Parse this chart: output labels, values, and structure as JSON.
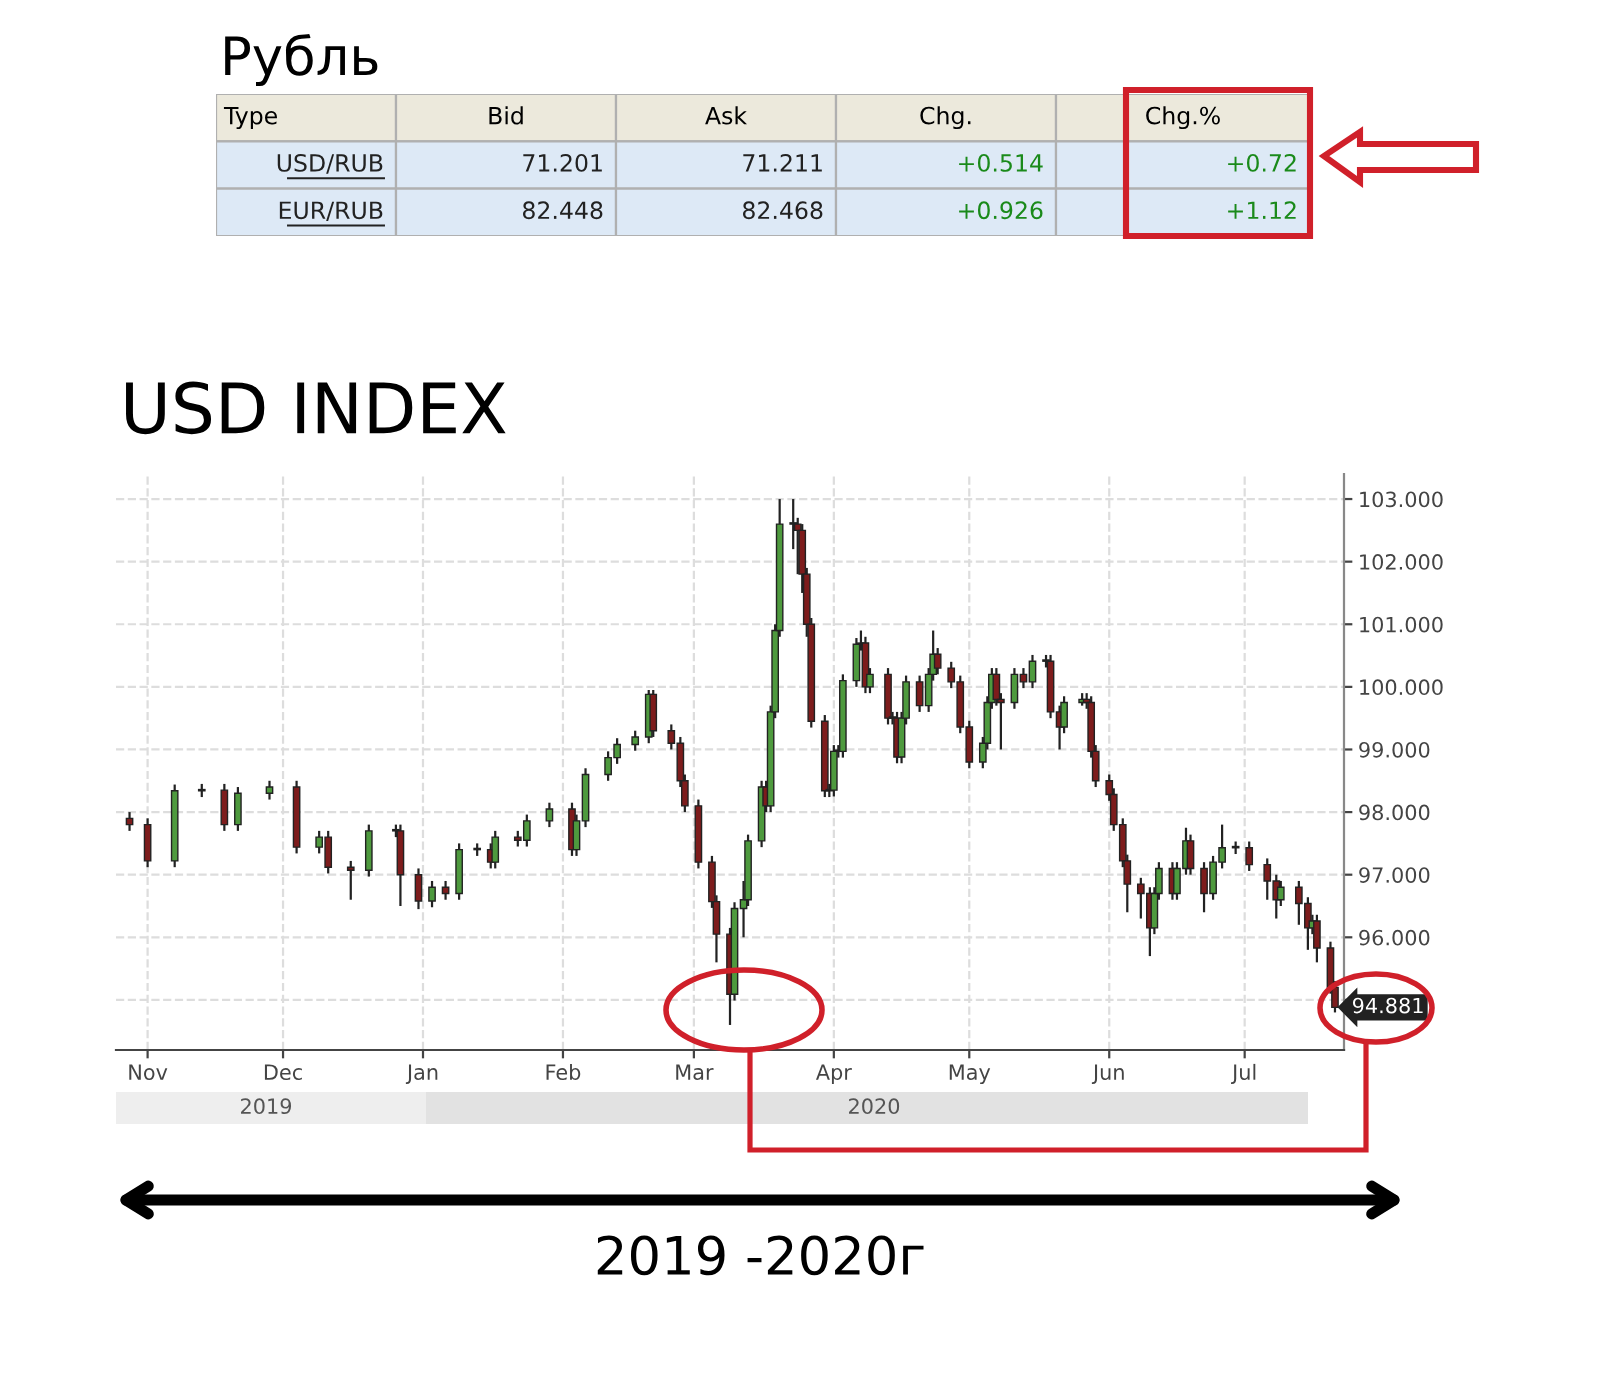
{
  "chart_data": [
    {
      "type": "other",
      "title": "Рубль",
      "categories": [
        "Type",
        "Bid",
        "Ask",
        "Chg.",
        "Chg.%"
      ],
      "y_categories": [
        "USD/RUB",
        "EUR/RUB"
      ],
      "cell_labels": [
        [
          "71.201",
          "71.211",
          "+0.514",
          "+0.72"
        ],
        [
          "82.448",
          "82.468",
          "+0.926",
          "+1.12"
        ]
      ]
    },
    {
      "type": "candlestick",
      "title": "USD INDEX",
      "x": [
        "2019-10-28",
        "2019-11-01",
        "2019-11-07",
        "2019-11-13",
        "2019-11-18",
        "2019-11-21",
        "2019-11-28",
        "2019-12-04",
        "2019-12-09",
        "2019-12-11",
        "2019-12-16",
        "2019-12-20",
        "2019-12-26",
        "2019-12-27",
        "2019-12-31",
        "2020-01-03",
        "2020-01-06",
        "2020-01-09",
        "2020-01-13",
        "2020-01-16",
        "2020-01-17",
        "2020-01-22",
        "2020-01-24",
        "2020-01-29",
        "2020-02-03",
        "2020-02-04",
        "2020-02-06",
        "2020-02-11",
        "2020-02-13",
        "2020-02-17",
        "2020-02-20",
        "2020-02-21",
        "2020-02-25",
        "2020-02-27",
        "2020-02-28",
        "2020-03-02",
        "2020-03-05",
        "2020-03-06",
        "2020-03-09",
        "2020-03-10",
        "2020-03-12",
        "2020-03-13",
        "2020-03-16",
        "2020-03-17",
        "2020-03-18",
        "2020-03-19",
        "2020-03-20",
        "2020-03-23",
        "2020-03-24",
        "2020-03-25",
        "2020-03-26",
        "2020-03-27",
        "2020-03-30",
        "2020-03-31",
        "2020-04-01",
        "2020-04-02",
        "2020-04-03",
        "2020-04-06",
        "2020-04-07",
        "2020-04-08",
        "2020-04-09",
        "2020-04-13",
        "2020-04-14",
        "2020-04-15",
        "2020-04-16",
        "2020-04-17",
        "2020-04-20",
        "2020-04-22",
        "2020-04-23",
        "2020-04-24",
        "2020-04-27",
        "2020-04-29",
        "2020-05-01",
        "2020-05-04",
        "2020-05-05",
        "2020-05-06",
        "2020-05-07",
        "2020-05-08",
        "2020-05-11",
        "2020-05-13",
        "2020-05-15",
        "2020-05-18",
        "2020-05-19",
        "2020-05-21",
        "2020-05-22",
        "2020-05-26",
        "2020-05-27",
        "2020-05-28",
        "2020-05-29",
        "2020-06-01",
        "2020-06-02",
        "2020-06-04",
        "2020-06-05",
        "2020-06-08",
        "2020-06-10",
        "2020-06-11",
        "2020-06-12",
        "2020-06-15",
        "2020-06-16",
        "2020-06-18",
        "2020-06-19",
        "2020-06-22",
        "2020-06-24",
        "2020-06-26",
        "2020-06-29",
        "2020-07-02",
        "2020-07-06",
        "2020-07-08",
        "2020-07-09",
        "2020-07-13",
        "2020-07-15",
        "2020-07-16",
        "2020-07-17",
        "2020-07-20",
        "2020-07-21"
      ],
      "ohlc": [
        [
          97.9,
          98.0,
          97.7,
          97.8
        ],
        [
          97.8,
          97.9,
          97.12,
          97.22
        ],
        [
          97.22,
          98.44,
          97.12,
          98.34
        ],
        [
          98.34,
          98.45,
          98.24,
          98.35
        ],
        [
          98.35,
          98.45,
          97.7,
          97.8
        ],
        [
          97.8,
          98.4,
          97.7,
          98.3
        ],
        [
          98.3,
          98.5,
          98.2,
          98.4
        ],
        [
          98.4,
          98.5,
          97.34,
          97.44
        ],
        [
          97.44,
          97.7,
          97.34,
          97.6
        ],
        [
          97.6,
          97.7,
          97.02,
          97.12
        ],
        [
          97.12,
          97.22,
          96.6,
          97.07
        ],
        [
          97.07,
          97.8,
          96.97,
          97.7
        ],
        [
          97.7,
          97.8,
          97.6,
          97.7
        ],
        [
          97.7,
          97.8,
          96.5,
          97.0
        ],
        [
          97.0,
          97.1,
          96.45,
          96.58
        ],
        [
          96.58,
          96.9,
          96.48,
          96.8
        ],
        [
          96.8,
          96.9,
          96.6,
          96.7
        ],
        [
          96.7,
          97.5,
          96.6,
          97.4
        ],
        [
          97.4,
          97.5,
          97.3,
          97.4
        ],
        [
          97.4,
          97.5,
          97.1,
          97.2
        ],
        [
          97.2,
          97.7,
          97.1,
          97.6
        ],
        [
          97.6,
          97.7,
          97.45,
          97.55
        ],
        [
          97.55,
          97.96,
          97.45,
          97.86
        ],
        [
          97.86,
          98.15,
          97.76,
          98.05
        ],
        [
          98.05,
          98.15,
          97.3,
          97.4
        ],
        [
          97.4,
          97.96,
          97.3,
          97.86
        ],
        [
          97.86,
          98.7,
          97.76,
          98.6
        ],
        [
          98.6,
          98.97,
          98.5,
          98.87
        ],
        [
          98.87,
          99.18,
          98.77,
          99.08
        ],
        [
          99.08,
          99.3,
          98.98,
          99.2
        ],
        [
          99.2,
          99.95,
          99.1,
          99.88
        ],
        [
          99.88,
          99.95,
          99.2,
          99.3
        ],
        [
          99.3,
          99.4,
          99.0,
          99.1
        ],
        [
          99.1,
          99.2,
          98.4,
          98.5
        ],
        [
          98.5,
          98.6,
          98.0,
          98.1
        ],
        [
          98.1,
          98.2,
          97.1,
          97.2
        ],
        [
          97.2,
          97.3,
          96.47,
          96.57
        ],
        [
          96.57,
          96.67,
          95.6,
          96.05
        ],
        [
          96.05,
          96.15,
          94.6,
          95.09
        ],
        [
          95.09,
          96.56,
          94.99,
          96.46
        ],
        [
          96.46,
          96.9,
          96.0,
          96.6
        ],
        [
          96.6,
          97.64,
          96.5,
          97.54
        ],
        [
          97.54,
          98.5,
          97.44,
          98.4
        ],
        [
          98.4,
          98.5,
          98.0,
          98.1
        ],
        [
          98.1,
          99.7,
          98.0,
          99.6
        ],
        [
          99.6,
          101.0,
          99.5,
          100.9
        ],
        [
          100.9,
          103.0,
          100.8,
          102.6
        ],
        [
          102.6,
          103.0,
          102.2,
          102.6
        ],
        [
          102.6,
          102.7,
          101.8,
          102.5
        ],
        [
          102.5,
          102.6,
          101.5,
          101.8
        ],
        [
          101.8,
          101.9,
          100.8,
          101.0
        ],
        [
          101.0,
          101.1,
          99.35,
          99.45
        ],
        [
          99.45,
          99.55,
          98.24,
          98.34
        ],
        [
          98.34,
          98.45,
          98.24,
          98.35
        ],
        [
          98.35,
          99.07,
          98.25,
          98.97
        ],
        [
          98.97,
          99.07,
          98.87,
          98.97
        ],
        [
          98.97,
          100.2,
          98.87,
          100.1
        ],
        [
          100.1,
          100.78,
          100.0,
          100.68
        ],
        [
          100.68,
          100.9,
          100.58,
          100.7
        ],
        [
          100.7,
          100.8,
          99.9,
          100.0
        ],
        [
          100.0,
          100.3,
          99.9,
          100.2
        ],
        [
          100.2,
          100.3,
          99.4,
          99.5
        ],
        [
          99.5,
          99.6,
          99.4,
          99.5
        ],
        [
          99.5,
          99.6,
          98.78,
          98.88
        ],
        [
          98.88,
          99.6,
          98.78,
          99.5
        ],
        [
          99.5,
          100.18,
          99.4,
          100.08
        ],
        [
          100.08,
          100.18,
          99.6,
          99.7
        ],
        [
          99.7,
          100.3,
          99.6,
          100.2
        ],
        [
          100.2,
          100.9,
          100.1,
          100.52
        ],
        [
          100.52,
          100.62,
          100.2,
          100.3
        ],
        [
          100.3,
          100.4,
          99.98,
          100.08
        ],
        [
          100.08,
          100.18,
          99.26,
          99.36
        ],
        [
          99.36,
          99.46,
          98.7,
          98.8
        ],
        [
          98.8,
          99.2,
          98.7,
          99.1
        ],
        [
          99.1,
          99.85,
          99.0,
          99.75
        ],
        [
          99.75,
          100.3,
          99.65,
          100.2
        ],
        [
          100.2,
          100.3,
          99.7,
          99.8
        ],
        [
          99.8,
          99.9,
          99.0,
          99.75
        ],
        [
          99.75,
          100.3,
          99.65,
          100.2
        ],
        [
          100.2,
          100.3,
          99.98,
          100.08
        ],
        [
          100.08,
          100.51,
          99.98,
          100.41
        ],
        [
          100.41,
          100.51,
          100.31,
          100.41
        ],
        [
          100.41,
          100.51,
          99.5,
          99.6
        ],
        [
          99.6,
          99.7,
          99.0,
          99.36
        ],
        [
          99.36,
          99.85,
          99.26,
          99.75
        ],
        [
          99.75,
          99.9,
          99.7,
          99.8
        ],
        [
          99.8,
          99.9,
          99.65,
          99.75
        ],
        [
          99.75,
          99.85,
          98.87,
          98.97
        ],
        [
          98.97,
          99.07,
          98.4,
          98.5
        ],
        [
          98.5,
          98.6,
          98.18,
          98.28
        ],
        [
          98.28,
          98.38,
          97.7,
          97.8
        ],
        [
          97.8,
          97.9,
          97.12,
          97.22
        ],
        [
          97.22,
          97.32,
          96.4,
          96.85
        ],
        [
          96.85,
          96.95,
          96.3,
          96.7
        ],
        [
          96.7,
          96.8,
          95.7,
          96.15
        ],
        [
          96.15,
          96.8,
          96.05,
          96.7
        ],
        [
          96.7,
          97.2,
          96.6,
          97.1
        ],
        [
          97.1,
          97.2,
          96.6,
          96.7
        ],
        [
          96.7,
          97.2,
          96.6,
          97.1
        ],
        [
          97.1,
          97.75,
          97.0,
          97.54
        ],
        [
          97.54,
          97.64,
          97.0,
          97.1
        ],
        [
          97.1,
          97.2,
          96.4,
          96.7
        ],
        [
          96.7,
          97.3,
          96.6,
          97.2
        ],
        [
          97.2,
          97.8,
          97.1,
          97.43
        ],
        [
          97.43,
          97.53,
          97.33,
          97.43
        ],
        [
          97.43,
          97.53,
          97.06,
          97.16
        ],
        [
          97.16,
          97.26,
          96.6,
          96.9
        ],
        [
          96.9,
          97.0,
          96.3,
          96.6
        ],
        [
          96.6,
          96.9,
          96.5,
          96.8
        ],
        [
          96.8,
          96.9,
          96.2,
          96.54
        ],
        [
          96.54,
          96.64,
          95.8,
          96.15
        ],
        [
          96.15,
          96.36,
          96.05,
          96.26
        ],
        [
          96.26,
          96.36,
          95.6,
          95.83
        ],
        [
          95.83,
          95.93,
          95.1,
          95.2
        ],
        [
          95.2,
          95.3,
          94.8,
          94.881
        ]
      ],
      "xlim": [
        "2019-10-25",
        "2020-07-23"
      ],
      "xticks": [
        {
          "value": "2019-11-01",
          "label": "Nov"
        },
        {
          "value": "2019-12-01",
          "label": "Dec"
        },
        {
          "value": "2020-01-01",
          "label": "Jan"
        },
        {
          "value": "2020-02-01",
          "label": "Feb"
        },
        {
          "value": "2020-03-01",
          "label": "Mar"
        },
        {
          "value": "2020-04-01",
          "label": "Apr"
        },
        {
          "value": "2020-05-01",
          "label": "May"
        },
        {
          "value": "2020-06-01",
          "label": "Jun"
        },
        {
          "value": "2020-07-01",
          "label": "Jul"
        }
      ],
      "ylim": [
        94.2,
        103.4
      ],
      "yticks": [
        {
          "value": 95,
          "label": null
        },
        {
          "value": 96,
          "label": "96.000"
        },
        {
          "value": 97,
          "label": "97.000"
        },
        {
          "value": 98,
          "label": "98.000"
        },
        {
          "value": 99,
          "label": "99.000"
        },
        {
          "value": 100,
          "label": "100.000"
        },
        {
          "value": 101,
          "label": "101.000"
        },
        {
          "value": 102,
          "label": "102.000"
        },
        {
          "value": 103,
          "label": "103.000"
        }
      ],
      "grid": true,
      "annotations": [
        {
          "text": "94.881",
          "x": "2020-07-21",
          "y": 94.881
        },
        "2019",
        "2020",
        "2019 -2020г"
      ]
    }
  ]
}
